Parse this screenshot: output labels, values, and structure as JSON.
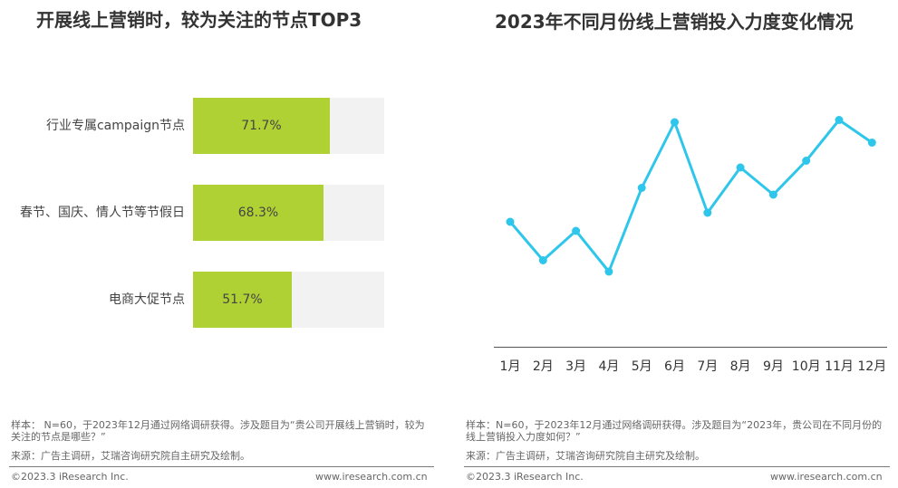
{
  "left_panel": {
    "title": "开展线上营销时，较为关注的节点TOP3",
    "note_sample": "样本： N=60，于2023年12月通过网络调研获得。涉及题目为“贵公司开展线上营销时，较为关注的节点是哪些？”",
    "note_source": "来源：广告主调研，艾瑞咨询研究院自主研究及绘制。",
    "copyright": "©2023.3 iResearch Inc.",
    "site": "www.iresearch.com.cn"
  },
  "right_panel": {
    "title": "2023年不同月份线上营销投入力度变化情况",
    "note_sample": "样本：N=60，于2023年12月通过网络调研获得。涉及题目为“2023年，贵公司在不同月份的线上营销投入力度如何？”",
    "note_source": "来源：广告主调研，艾瑞咨询研究院自主研究及绘制。",
    "copyright": "©2023.3 iResearch Inc.",
    "site": "www.iresearch.com.cn"
  },
  "chart_data": [
    {
      "type": "bar",
      "orientation": "horizontal",
      "title": "开展线上营销时，较为关注的节点TOP3",
      "categories": [
        "行业专属campaign节点",
        "春节、国庆、情人节等节假日",
        "电商大促节点"
      ],
      "values": [
        71.7,
        68.3,
        51.7
      ],
      "value_labels": [
        "71.7%",
        "68.3%",
        "51.7%"
      ],
      "unit": "%",
      "xlim": [
        0,
        100
      ],
      "colors": {
        "bar": "#b0d134",
        "track": "#f2f2f2"
      }
    },
    {
      "type": "line",
      "title": "2023年不同月份线上营销投入力度变化情况",
      "categories": [
        "1月",
        "2月",
        "3月",
        "4月",
        "5月",
        "6月",
        "7月",
        "8月",
        "9月",
        "10月",
        "11月",
        "12月"
      ],
      "values": [
        42,
        25,
        38,
        20,
        57,
        86,
        46,
        66,
        54,
        69,
        87,
        77
      ],
      "ylim": [
        0,
        100
      ],
      "y_axis_visible": false,
      "grid": false,
      "colors": {
        "line": "#2ec6ea"
      }
    }
  ]
}
